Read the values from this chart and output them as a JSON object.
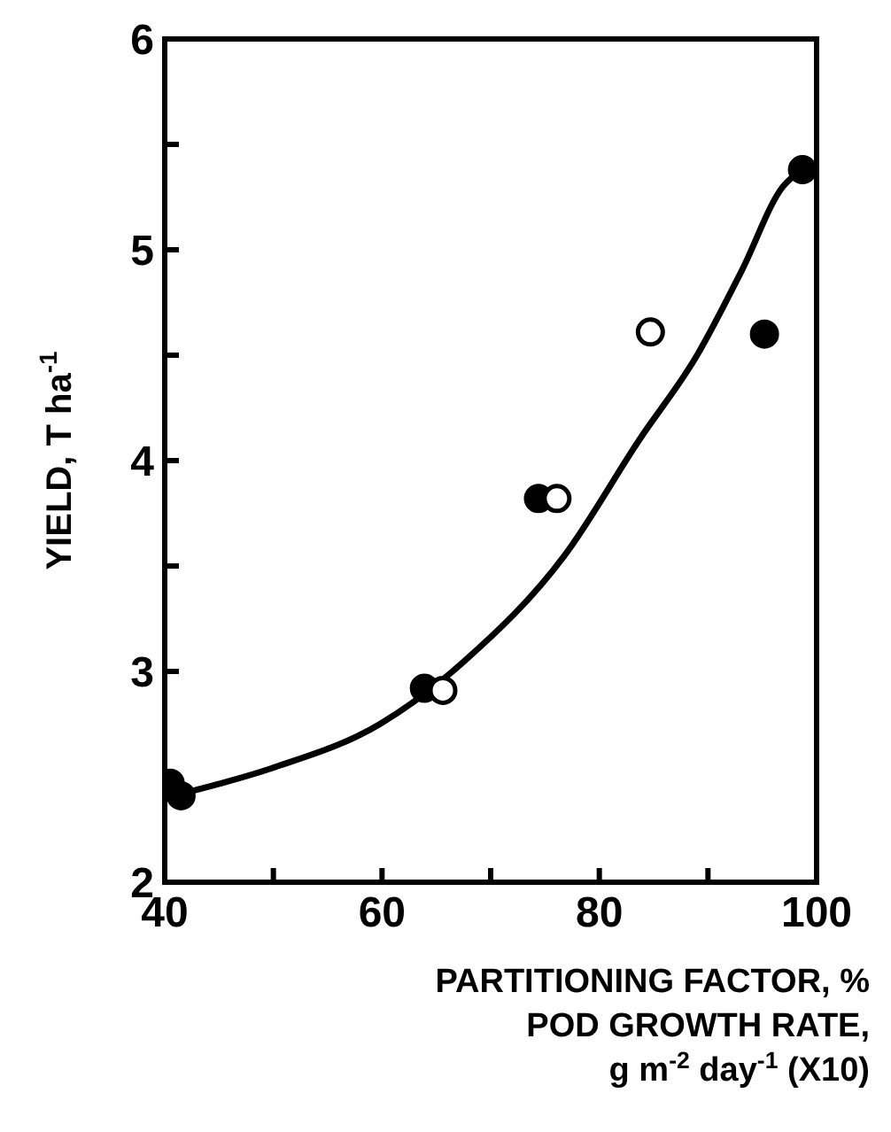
{
  "chart_data": {
    "type": "scatter",
    "ylabel": "YIELD, T ha$^{-1}$",
    "xlabel": "PARTITIONING FACTOR, %\nPOD GROWTH RATE,\ng m$^{-2}$ day$^{-1}$ (X10)",
    "xlim": [
      40,
      100
    ],
    "ylim": [
      2,
      6
    ],
    "xticks": [
      40,
      {
        "value": 50,
        "label": null
      },
      60,
      {
        "value": 70,
        "label": null
      },
      80,
      {
        "value": 90,
        "label": null
      },
      100
    ],
    "yticks": [
      2,
      {
        "value": 2.5,
        "label": null
      },
      3,
      {
        "value": 3.5,
        "label": null
      },
      4,
      {
        "value": 4.5,
        "label": null
      },
      5,
      {
        "value": 5.5,
        "label": null
      },
      6
    ],
    "grid": false,
    "legend": false,
    "marker": "circle",
    "series": [
      {
        "color": "#000000",
        "x": [
          40.5,
          41.5,
          63.9,
          74.4,
          95.2,
          98.7
        ],
        "values": [
          2.47,
          2.41,
          2.92,
          3.82,
          4.6,
          5.38
        ]
      },
      {
        "color": "#ffffff",
        "x": [
          65.6,
          76.1,
          84.7
        ],
        "values": [
          2.91,
          3.82,
          4.61
        ]
      },
      {
        "type": "line",
        "color": "#000000",
        "marker": "none",
        "line_style": "solid",
        "x": [
          41.5,
          49.8,
          59.8,
          67.6,
          76.8,
          83.7,
          89,
          93.1,
          96.9,
          98.7
        ],
        "values": [
          2.42,
          2.54,
          2.75,
          3.05,
          3.55,
          4.1,
          4.5,
          4.9,
          5.3,
          5.38
        ]
      }
    ]
  }
}
